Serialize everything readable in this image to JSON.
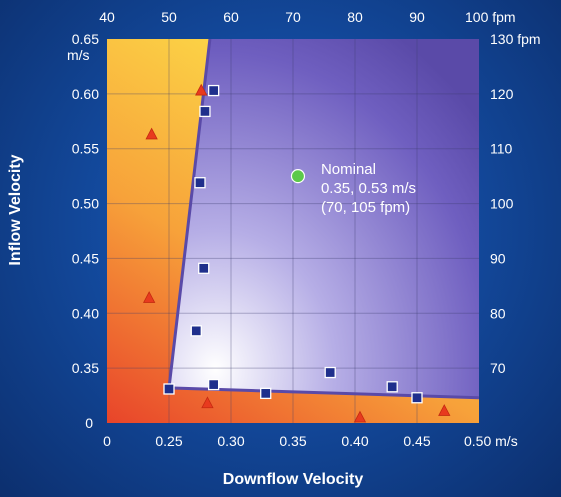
{
  "chart_data": {
    "type": "scatter",
    "xlabel": "Downflow Velocity",
    "ylabel": "Inflow Velocity",
    "x_unit": "m/s",
    "y_unit": "m/s",
    "xlim": [
      0.2,
      0.5
    ],
    "ylim": [
      0.3,
      0.65
    ],
    "x_ticks": [
      {
        "value": 0.2,
        "label": "0"
      },
      {
        "value": 0.25,
        "label": "0.25"
      },
      {
        "value": 0.3,
        "label": "0.30"
      },
      {
        "value": 0.35,
        "label": "0.35"
      },
      {
        "value": 0.4,
        "label": "0.40"
      },
      {
        "value": 0.45,
        "label": "0.45"
      },
      {
        "value": 0.5,
        "label": "0.50 m/s"
      }
    ],
    "y_ticks": [
      {
        "value": 0.3,
        "label": "0"
      },
      {
        "value": 0.35,
        "label": "0.35"
      },
      {
        "value": 0.4,
        "label": "0.40"
      },
      {
        "value": 0.45,
        "label": "0.45"
      },
      {
        "value": 0.5,
        "label": "0.50"
      },
      {
        "value": 0.55,
        "label": "0.55"
      },
      {
        "value": 0.6,
        "label": "0.60"
      },
      {
        "value": 0.65,
        "label": "0.65"
      }
    ],
    "y_unit_label": "m/s",
    "top_ticks": [
      {
        "value": 0.2,
        "label": "40"
      },
      {
        "value": 0.25,
        "label": "50"
      },
      {
        "value": 0.3,
        "label": "60"
      },
      {
        "value": 0.35,
        "label": "70"
      },
      {
        "value": 0.4,
        "label": "80"
      },
      {
        "value": 0.45,
        "label": "90"
      },
      {
        "value": 0.5,
        "label": "100 fpm"
      }
    ],
    "right_ticks": [
      {
        "value": 0.35,
        "label": "70"
      },
      {
        "value": 0.4,
        "label": "80"
      },
      {
        "value": 0.45,
        "label": "90"
      },
      {
        "value": 0.5,
        "label": "100"
      },
      {
        "value": 0.55,
        "label": "110"
      },
      {
        "value": 0.6,
        "label": "120"
      },
      {
        "value": 0.65,
        "label": "130 fpm"
      }
    ],
    "grid": true,
    "boundary": [
      [
        0.283,
        0.65
      ],
      [
        0.25,
        0.332
      ],
      [
        0.5,
        0.323
      ]
    ],
    "series": [
      {
        "marker": "square",
        "color": "#1f2f8c",
        "points": [
          [
            0.286,
            0.603
          ],
          [
            0.279,
            0.584
          ],
          [
            0.275,
            0.519
          ],
          [
            0.278,
            0.441
          ],
          [
            0.272,
            0.384
          ],
          [
            0.25,
            0.331
          ],
          [
            0.286,
            0.335
          ],
          [
            0.328,
            0.327
          ],
          [
            0.38,
            0.346
          ],
          [
            0.43,
            0.333
          ],
          [
            0.45,
            0.323
          ]
        ]
      },
      {
        "marker": "triangle",
        "color": "#e83a1e",
        "points": [
          [
            0.236,
            0.563
          ],
          [
            0.234,
            0.414
          ],
          [
            0.276,
            0.603
          ],
          [
            0.281,
            0.318
          ],
          [
            0.404,
            0.305
          ],
          [
            0.472,
            0.311
          ]
        ]
      }
    ],
    "annotation": {
      "x": 0.354,
      "y": 0.525,
      "color": "#5cc94a",
      "lines": [
        "Nominal",
        "0.35, 0.53 m/s",
        "(70, 105 fpm)"
      ]
    }
  }
}
